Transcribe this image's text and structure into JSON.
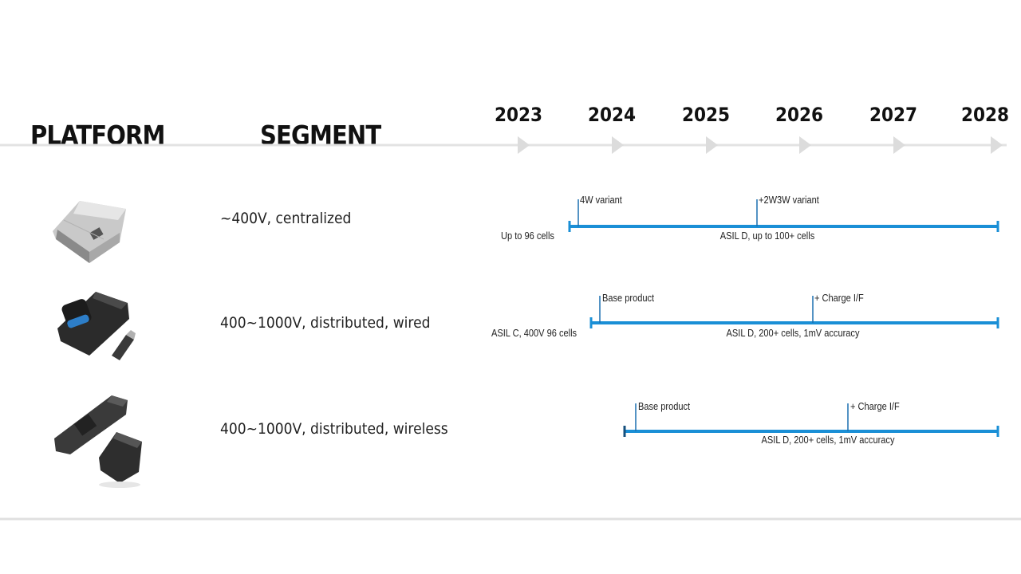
{
  "headers": {
    "platform": "PLATFORM",
    "segment": "SEGMENT"
  },
  "years": [
    "2023",
    "2024",
    "2025",
    "2026",
    "2027",
    "2028"
  ],
  "rows": [
    {
      "segment": "~400V, centralized",
      "start_label": "Up to 96 cells",
      "bar_label": "ASIL D, up to 100+ cells",
      "milestones": [
        "4W variant",
        "+2W3W variant"
      ]
    },
    {
      "segment": "400~1000V, distributed, wired",
      "start_label": "ASIL C, 400V 96 cells",
      "bar_label": "ASIL D, 200+ cells, 1mV accuracy",
      "milestones": [
        "Base product",
        "+ Charge I/F"
      ]
    },
    {
      "segment": "400~1000V, distributed, wireless",
      "start_label": "",
      "bar_label": "ASIL D, 200+ cells, 1mV accuracy",
      "milestones": [
        "Base product",
        "+ Charge I/F"
      ]
    }
  ],
  "colors": {
    "bar": "#1a8fd6",
    "arrow": "#d9d9d9",
    "axis": "#e3e3e3"
  }
}
